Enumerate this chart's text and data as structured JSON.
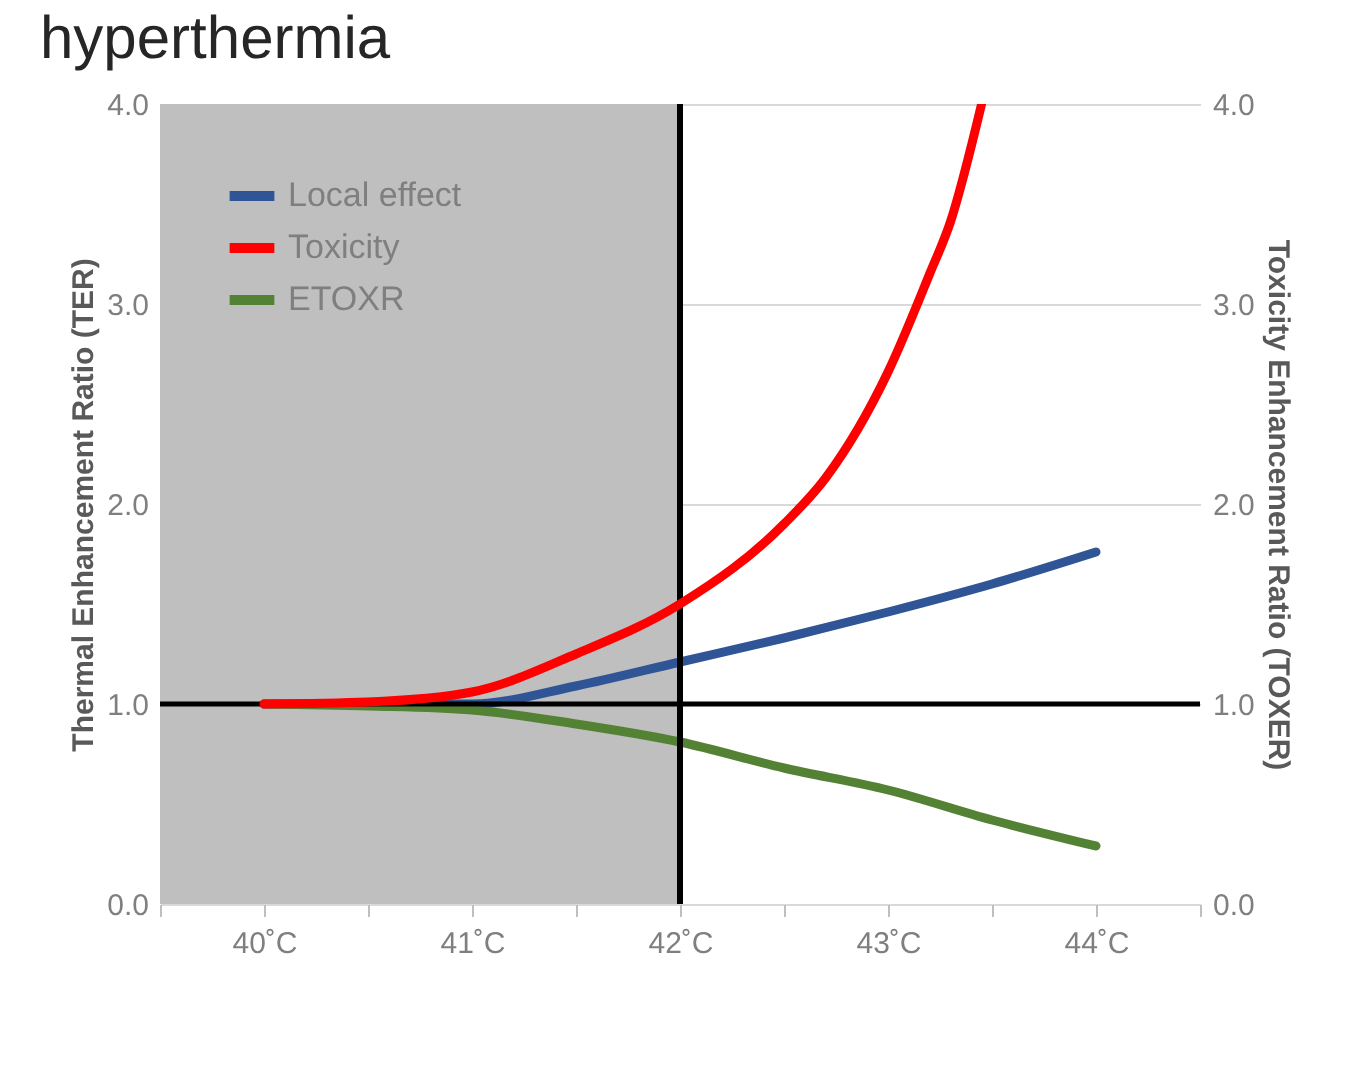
{
  "chart_data": {
    "type": "line",
    "title": "hyperthermia",
    "ylabel": "Thermal Enhancement Ratio (TER)",
    "y2label": "Toxicity Enhancement Ratio (TOXER)",
    "xlim": [
      39.5,
      44.5
    ],
    "xticks": [
      {
        "value": 39.5,
        "label": null
      },
      {
        "value": 40,
        "label": "40˚C"
      },
      {
        "value": 40.5,
        "label": null
      },
      {
        "value": 41,
        "label": "41˚C"
      },
      {
        "value": 41.5,
        "label": null
      },
      {
        "value": 42,
        "label": "42˚C"
      },
      {
        "value": 42.5,
        "label": null
      },
      {
        "value": 43,
        "label": "43˚C"
      },
      {
        "value": 43.5,
        "label": null
      },
      {
        "value": 44,
        "label": "44˚C"
      },
      {
        "value": 44.5,
        "label": null
      }
    ],
    "ylim": [
      0,
      4
    ],
    "yticks": [
      {
        "value": 0,
        "label": "0.0"
      },
      {
        "value": 1,
        "label": "1.0"
      },
      {
        "value": 2,
        "label": "2.0"
      },
      {
        "value": 3,
        "label": "3.0"
      },
      {
        "value": 4,
        "label": "4.0"
      }
    ],
    "y2lim": [
      0,
      4
    ],
    "y2ticks": [
      {
        "value": 0,
        "label": "0.0"
      },
      {
        "value": 1,
        "label": "1.0"
      },
      {
        "value": 2,
        "label": "2.0"
      },
      {
        "value": 3,
        "label": "3.0"
      },
      {
        "value": 4,
        "label": "4.0"
      }
    ],
    "series": [
      {
        "name": "Local effect",
        "color": "#2f5597",
        "x": [
          40,
          40.5,
          41,
          41.5,
          42,
          42.5,
          43,
          43.5,
          44
        ],
        "values": [
          1.0,
          1.0,
          1.0,
          1.09,
          1.21,
          1.33,
          1.46,
          1.6,
          1.76
        ]
      },
      {
        "name": "Toxicity",
        "color": "#ff0000",
        "axis": "y2",
        "x": [
          40,
          40.5,
          41,
          41.5,
          42,
          42.5,
          42.7,
          43,
          43.2,
          43.3,
          43.45
        ],
        "values": [
          1.0,
          1.01,
          1.06,
          1.25,
          1.5,
          1.9,
          2.13,
          2.66,
          3.15,
          3.41,
          4.0
        ]
      },
      {
        "name": "ETOXR",
        "color": "#548235",
        "x": [
          40,
          40.5,
          41,
          41.5,
          42,
          42.5,
          43,
          43.5,
          44
        ],
        "values": [
          1.0,
          0.99,
          0.97,
          0.9,
          0.81,
          0.68,
          0.57,
          0.42,
          0.29
        ]
      }
    ],
    "bands": [
      {
        "axis": "x",
        "from": 39.5,
        "to": 42,
        "color": "#bfbfbf"
      }
    ],
    "ref_lines": [
      {
        "axis": "x",
        "value": 42,
        "color": "#000000"
      },
      {
        "axis": "y",
        "value": 1,
        "color": "#000000"
      }
    ],
    "grid": "y",
    "legend": "top left",
    "line_style": "solid",
    "marker": "none"
  }
}
